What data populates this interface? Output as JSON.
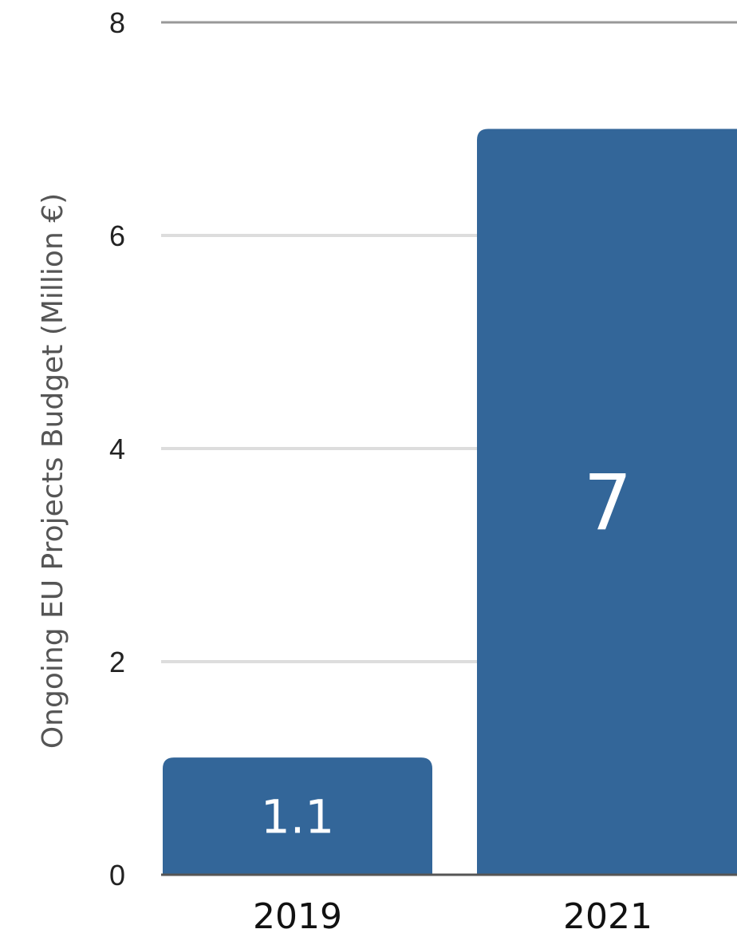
{
  "chart_data": {
    "type": "bar",
    "categories": [
      "2019",
      "2021"
    ],
    "values": [
      1.1,
      7
    ],
    "data_labels": [
      "1.1",
      "7"
    ],
    "xlabel": "",
    "ylabel": "Ongoing EU Projects Budget (Million €)",
    "ylim": [
      0,
      8
    ],
    "yticks": [
      "0",
      "2",
      "4",
      "6",
      "8"
    ],
    "grid": true,
    "legend": "none"
  },
  "colors": {
    "bar": "#336699",
    "grid": "#dddddd",
    "axis": "#555555"
  }
}
